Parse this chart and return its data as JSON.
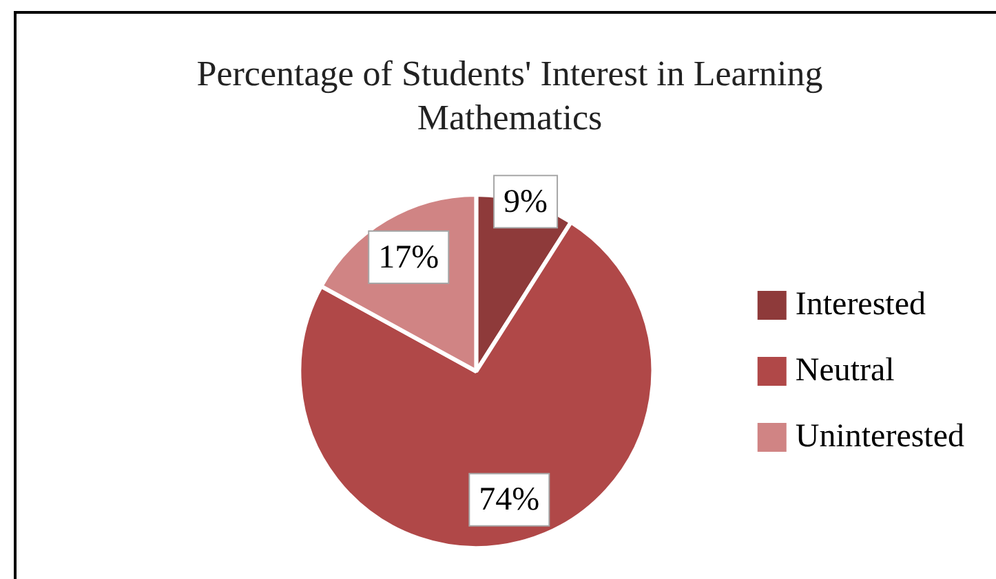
{
  "chart_data": {
    "type": "pie",
    "title": "Percentage of Students' Interest in Learning Mathematics",
    "categories": [
      "Interested",
      "Neutral",
      "Uninterested"
    ],
    "values": [
      9,
      74,
      17
    ],
    "colors": [
      "#8e3a3a",
      "#b04848",
      "#d08484"
    ],
    "value_labels": [
      "9%",
      "74%",
      "17%"
    ],
    "legend": "right"
  }
}
